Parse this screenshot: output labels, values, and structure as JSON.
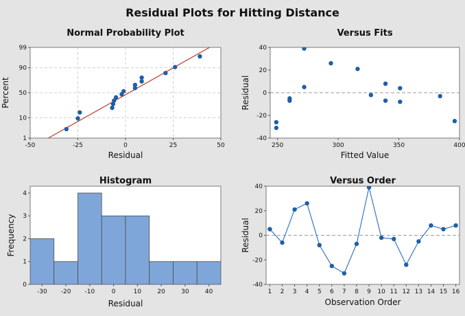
{
  "title": "Residual Plots for Hitting Distance",
  "colors": {
    "point": "#1f5fa8",
    "fit_line": "#c0392b",
    "bar_fill": "#7fa6d9",
    "bar_stroke": "#4a4a4a",
    "line": "#3a77c4"
  },
  "chart_data": [
    {
      "id": "npp",
      "type": "scatter",
      "title": "Normal Probability Plot",
      "xlabel": "Residual",
      "ylabel": "Percent",
      "xlim": [
        -50,
        50
      ],
      "x_ticks": [
        -50,
        -25,
        0,
        25,
        50
      ],
      "y_ticks": [
        1,
        10,
        50,
        90,
        99
      ],
      "y_scale": "normal-probability",
      "grid": true,
      "fit_line": [
        [
          -45,
          0.5
        ],
        [
          50,
          99.6
        ]
      ],
      "points": [
        {
          "x": -31,
          "y": 3.1
        },
        {
          "x": -25,
          "y": 9.4
        },
        {
          "x": -24,
          "y": 15.6
        },
        {
          "x": -7,
          "y": 21.9
        },
        {
          "x": -6.5,
          "y": 28.1
        },
        {
          "x": -6,
          "y": 34.4
        },
        {
          "x": -5,
          "y": 40.6
        },
        {
          "x": -2,
          "y": 46.9
        },
        {
          "x": -1,
          "y": 53.1
        },
        {
          "x": 5,
          "y": 59.4
        },
        {
          "x": 5,
          "y": 65.6
        },
        {
          "x": 8.5,
          "y": 71.9
        },
        {
          "x": 8.5,
          "y": 78.1
        },
        {
          "x": 21,
          "y": 84.4
        },
        {
          "x": 26,
          "y": 90.6
        },
        {
          "x": 39,
          "y": 96.9
        }
      ]
    },
    {
      "id": "fits",
      "type": "scatter",
      "title": "Versus Fits",
      "xlabel": "Fitted Value",
      "ylabel": "Residual",
      "xlim": [
        244,
        400
      ],
      "ylim": [
        -40,
        40
      ],
      "x_ticks": [
        250,
        300,
        350,
        400
      ],
      "y_ticks": [
        -40,
        -20,
        0,
        20,
        40
      ],
      "reference_line": 0,
      "points": [
        {
          "x": 249,
          "y": -26
        },
        {
          "x": 249,
          "y": -31
        },
        {
          "x": 260,
          "y": -7
        },
        {
          "x": 260,
          "y": -5
        },
        {
          "x": 272,
          "y": 39
        },
        {
          "x": 272,
          "y": 5
        },
        {
          "x": 294,
          "y": 26
        },
        {
          "x": 316,
          "y": 21
        },
        {
          "x": 327,
          "y": -2
        },
        {
          "x": 339,
          "y": 8
        },
        {
          "x": 339,
          "y": -7
        },
        {
          "x": 351,
          "y": 4
        },
        {
          "x": 351,
          "y": -8
        },
        {
          "x": 384,
          "y": -3
        },
        {
          "x": 396,
          "y": -25
        }
      ]
    },
    {
      "id": "hist",
      "type": "bar",
      "title": "Histogram",
      "xlabel": "Residual",
      "ylabel": "Frequency",
      "bin_edges": [
        -35,
        -25,
        -15,
        -5,
        5,
        15,
        25,
        35,
        45
      ],
      "values": [
        2,
        1,
        4,
        3,
        3,
        1,
        1,
        1
      ],
      "x_ticks": [
        -30,
        -20,
        -10,
        0,
        10,
        20,
        30,
        40
      ],
      "ylim": [
        0,
        4.3
      ],
      "y_ticks": [
        0,
        1,
        2,
        3,
        4
      ]
    },
    {
      "id": "order",
      "type": "line",
      "title": "Versus Order",
      "xlabel": "Observation Order",
      "ylabel": "Residual",
      "x": [
        1,
        2,
        3,
        4,
        5,
        6,
        7,
        8,
        9,
        10,
        11,
        12,
        13,
        14,
        15,
        16
      ],
      "values": [
        5,
        -6,
        21,
        26,
        -8,
        -25,
        -31,
        -7,
        39,
        -2,
        -3,
        -24,
        -5,
        8,
        5,
        8
      ],
      "xlim": [
        0.7,
        16.3
      ],
      "ylim": [
        -40,
        40
      ],
      "x_ticks": [
        1,
        2,
        3,
        4,
        5,
        6,
        7,
        8,
        9,
        10,
        11,
        12,
        13,
        14,
        15,
        16
      ],
      "y_ticks": [
        -40,
        -20,
        0,
        20,
        40
      ],
      "reference_line": 0
    }
  ]
}
